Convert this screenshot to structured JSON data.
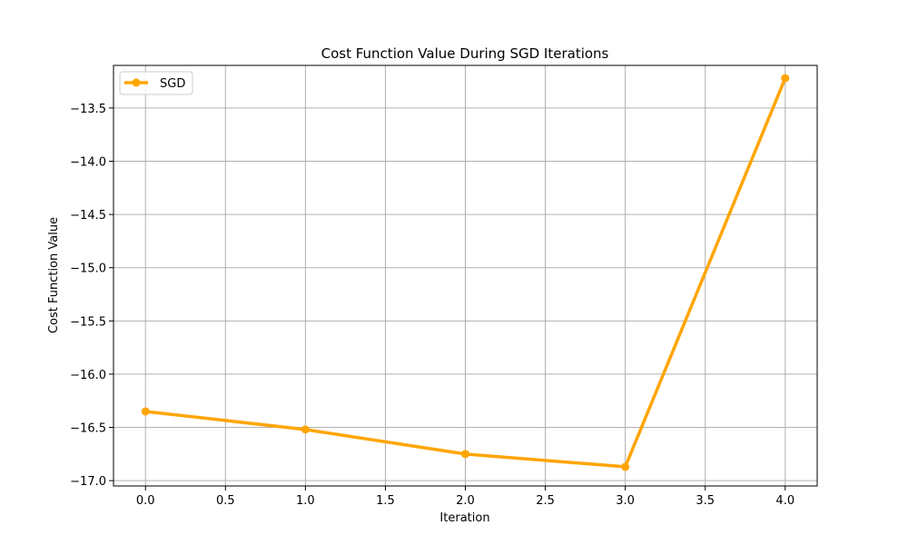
{
  "chart_data": {
    "type": "line",
    "title": "Cost Function Value During SGD Iterations",
    "xlabel": "Iteration",
    "ylabel": "Cost Function Value",
    "xlim": [
      -0.2,
      4.2
    ],
    "ylim": [
      -17.05,
      -13.1
    ],
    "xticks": [
      0,
      0.5,
      1,
      1.5,
      2,
      2.5,
      3,
      3.5,
      4
    ],
    "xtick_labels": [
      "0.0",
      "0.5",
      "1.0",
      "1.5",
      "2.0",
      "2.5",
      "3.0",
      "3.5",
      "4.0"
    ],
    "yticks": [
      -17,
      -16.5,
      -16,
      -15.5,
      -15,
      -14.5,
      -14,
      -13.5
    ],
    "ytick_labels": [
      "−17.0",
      "−16.5",
      "−16.0",
      "−15.5",
      "−15.0",
      "−14.5",
      "−14.0",
      "−13.5"
    ],
    "grid": true,
    "legend_position": "top-left",
    "series": [
      {
        "name": "SGD",
        "color": "#ffa500",
        "marker": "circle",
        "x": [
          0,
          1,
          2,
          3,
          4
        ],
        "y": [
          -16.35,
          -16.52,
          -16.75,
          -16.87,
          -13.22
        ]
      }
    ]
  }
}
